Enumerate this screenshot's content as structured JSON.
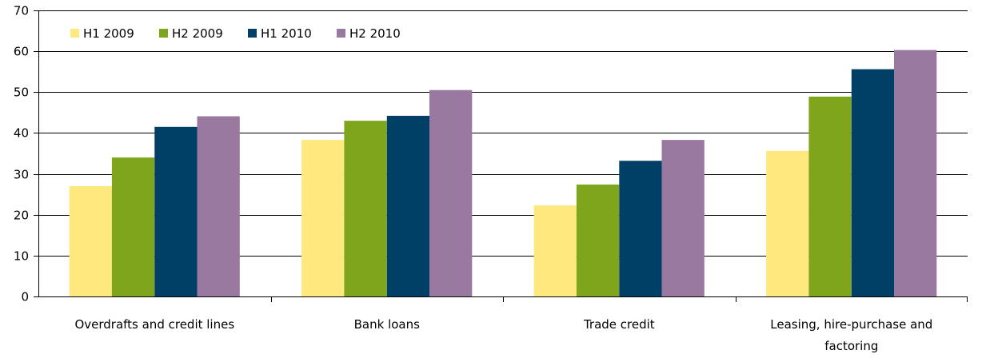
{
  "chart_data": {
    "type": "bar",
    "categories": [
      [
        "Overdrafts and credit lines"
      ],
      [
        "Bank loans"
      ],
      [
        "Trade credit"
      ],
      [
        "Leasing, hire-purchase and",
        "factoring"
      ]
    ],
    "series": [
      {
        "name": "H1 2009",
        "color": "#FFE97F",
        "values": [
          27,
          38.3,
          22.3,
          35.6
        ]
      },
      {
        "name": "H2 2009",
        "color": "#7FA51C",
        "values": [
          34,
          43,
          27.4,
          48.9
        ]
      },
      {
        "name": "H1 2010",
        "color": "#003F66",
        "values": [
          41.5,
          44.2,
          33.2,
          55.6
        ]
      },
      {
        "name": "H2 2010",
        "color": "#9A79A1",
        "values": [
          44.1,
          50.5,
          38.3,
          60.3
        ]
      }
    ],
    "ylim": [
      0,
      70
    ],
    "yticks": [
      "0",
      "10",
      "20",
      "30",
      "40",
      "50",
      "60",
      "70"
    ],
    "grid": true,
    "legend": "top-left"
  }
}
